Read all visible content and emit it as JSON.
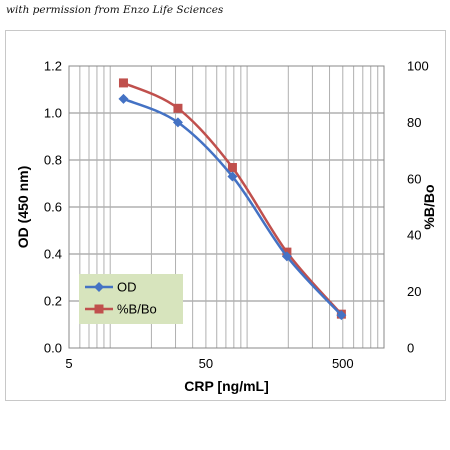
{
  "credit": "with permission from Enzo Life Sciences",
  "chart_data": {
    "type": "line",
    "title": "",
    "xlabel": "CRP [ng/mL]",
    "ylabel": "OD (450 nm)",
    "y2label": "%B/Bo",
    "xscale": "log",
    "xlim": [
      5,
      1000
    ],
    "ylim": [
      0,
      1.2
    ],
    "y2lim": [
      0,
      100
    ],
    "x_ticks": [
      "5",
      "50",
      "500"
    ],
    "y_ticks": [
      "0.0",
      "0.2",
      "0.4",
      "0.6",
      "0.8",
      "1.0",
      "1.2"
    ],
    "y2_ticks": [
      "0",
      "20",
      "40",
      "60",
      "80",
      "100"
    ],
    "grid": true,
    "legend_position": "bottom-left",
    "x": [
      12.5,
      31.25,
      78.125,
      195.3,
      488.3
    ],
    "series": [
      {
        "name": "OD",
        "axis": "left",
        "color": "#4472C4",
        "marker": "diamond",
        "values": [
          1.06,
          0.96,
          0.73,
          0.39,
          0.14
        ]
      },
      {
        "name": "%B/Bo",
        "axis": "right",
        "color": "#C0504D",
        "marker": "square",
        "values": [
          94,
          85,
          64,
          34,
          12
        ]
      }
    ]
  }
}
